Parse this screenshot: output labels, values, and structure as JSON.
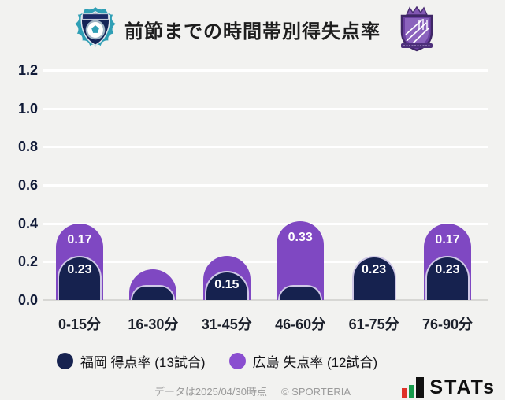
{
  "header": {
    "title": "前節までの時間帯別得失点率",
    "left_logo": "アビスパ福岡",
    "right_logo": "サンフレッチェ広島"
  },
  "chart_data": {
    "type": "bar",
    "stacked": true,
    "orientation": "vertical",
    "title": "前節までの時間帯別得失点率",
    "categories": [
      "0-15分",
      "16-30分",
      "31-45分",
      "46-60分",
      "61-75分",
      "76-90分"
    ],
    "series": [
      {
        "name": "福岡 得点率 (13試合)",
        "color": "#16224f",
        "values": [
          0.23,
          0.08,
          0.15,
          0.08,
          0.23,
          0.23
        ],
        "shown_labels": [
          "0.23",
          "",
          "0.15",
          "",
          "0.23",
          "0.23"
        ]
      },
      {
        "name": "広島 失点率 (12試合)",
        "color": "#7f48c2",
        "values": [
          0.17,
          0.08,
          0.08,
          0.33,
          0,
          0.17
        ],
        "shown_labels": [
          "0.17",
          "",
          "",
          "0.33",
          "",
          "0.17"
        ]
      }
    ],
    "ylim": [
      0,
      1.2
    ],
    "yticks": [
      "0.0",
      "0.2",
      "0.4",
      "0.6",
      "0.8",
      "1.0",
      "1.2"
    ],
    "grid": "horizontal-white",
    "legend_position": "bottom"
  },
  "legend": {
    "items": [
      {
        "label": "福岡 得点率 (13試合)",
        "color": "#16224f"
      },
      {
        "label": "広島 失点率 (12試合)",
        "color": "#8a4ed0"
      }
    ]
  },
  "footer": {
    "note": "データは2025/04/30時点",
    "copyright": "© SPORTERIA",
    "logo_text": "STATs"
  }
}
